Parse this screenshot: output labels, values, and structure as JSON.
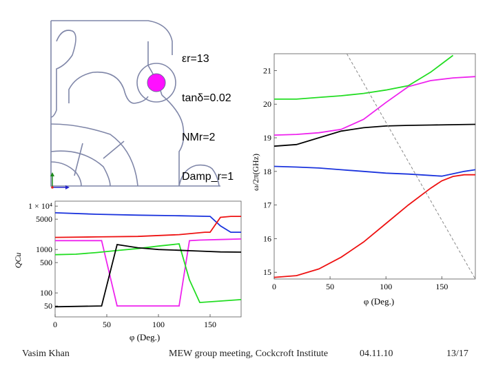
{
  "parameters": [
    "εr=13",
    "tanδ=0.02",
    "NMr=2",
    "Damp_r=1"
  ],
  "footer": {
    "author": "Vasim Khan",
    "event": "MEW group meeting, Cockcroft Institute",
    "date": "04.11.10",
    "page": "13/17"
  },
  "chart_data": [
    {
      "type": "line",
      "name": "frequency-vs-phase",
      "xlabel": "φ (Deg.)",
      "ylabel": "ω/2π(GHz)",
      "xlim": [
        0,
        180
      ],
      "ylim": [
        14.8,
        21.5
      ],
      "xticks": [
        0,
        50,
        100,
        150
      ],
      "yticks": [
        15,
        16,
        17,
        18,
        19,
        20,
        21
      ],
      "series": [
        {
          "name": "green",
          "color": "#22dd22",
          "x": [
            0,
            20,
            40,
            60,
            80,
            100,
            120,
            130,
            140,
            150,
            160
          ],
          "y": [
            20.15,
            20.15,
            20.2,
            20.25,
            20.32,
            20.42,
            20.55,
            20.75,
            20.95,
            21.2,
            21.45
          ]
        },
        {
          "name": "magenta",
          "color": "#ee22ee",
          "x": [
            0,
            20,
            40,
            60,
            80,
            100,
            120,
            140,
            160,
            180
          ],
          "y": [
            19.08,
            19.1,
            19.15,
            19.25,
            19.55,
            20.05,
            20.52,
            20.7,
            20.78,
            20.82
          ]
        },
        {
          "name": "black",
          "color": "#000000",
          "x": [
            0,
            20,
            40,
            60,
            80,
            100,
            120,
            140,
            160,
            180
          ],
          "y": [
            18.75,
            18.8,
            19.0,
            19.2,
            19.3,
            19.35,
            19.37,
            19.38,
            19.39,
            19.4
          ]
        },
        {
          "name": "blue",
          "color": "#1a33dd",
          "x": [
            0,
            20,
            40,
            60,
            80,
            100,
            120,
            140,
            150,
            160,
            170,
            180
          ],
          "y": [
            18.15,
            18.13,
            18.1,
            18.05,
            18.0,
            17.95,
            17.92,
            17.88,
            17.86,
            17.93,
            18.0,
            18.05
          ]
        },
        {
          "name": "red",
          "color": "#ee1111",
          "x": [
            0,
            20,
            40,
            60,
            80,
            100,
            120,
            140,
            150,
            160,
            170,
            180
          ],
          "y": [
            14.85,
            14.9,
            15.1,
            15.45,
            15.9,
            16.45,
            17.0,
            17.5,
            17.72,
            17.85,
            17.9,
            17.9
          ]
        },
        {
          "name": "light-line",
          "color": "#888888",
          "dashed": true,
          "x": [
            65,
            180
          ],
          "y": [
            21.5,
            14.8
          ]
        }
      ]
    },
    {
      "type": "line",
      "name": "quality-factor-vs-phase",
      "xlabel": "φ (Deg.)",
      "ylabel": "QCu",
      "yscale": "log",
      "xlim": [
        0,
        180
      ],
      "ylim": [
        28,
        13000
      ],
      "xticks": [
        0,
        50,
        100,
        150
      ],
      "yticks": [
        50,
        100,
        500,
        1000,
        5000,
        10000
      ],
      "yticklabels": [
        "50",
        "100",
        "500",
        "1000",
        "5000",
        "1 × 10⁴"
      ],
      "series": [
        {
          "name": "blue",
          "color": "#1a33dd",
          "x": [
            0,
            40,
            80,
            120,
            150,
            160,
            170,
            180
          ],
          "y": [
            7000,
            6500,
            6200,
            6000,
            5800,
            3500,
            2500,
            2500
          ]
        },
        {
          "name": "red",
          "color": "#ee1111",
          "x": [
            0,
            40,
            80,
            120,
            145,
            150,
            160,
            170,
            180
          ],
          "y": [
            1900,
            1950,
            2000,
            2200,
            2500,
            2500,
            5500,
            5800,
            5800
          ]
        },
        {
          "name": "magenta",
          "color": "#ee22ee",
          "x": [
            0,
            45,
            60,
            80,
            100,
            120,
            130,
            140,
            160,
            180
          ],
          "y": [
            1600,
            1600,
            50,
            50,
            50,
            50,
            1600,
            1650,
            1700,
            1750
          ]
        },
        {
          "name": "green",
          "color": "#22dd22",
          "x": [
            0,
            20,
            40,
            60,
            80,
            100,
            120,
            130,
            140,
            160,
            180
          ],
          "y": [
            760,
            780,
            850,
            950,
            1050,
            1200,
            1350,
            200,
            60,
            65,
            70
          ]
        },
        {
          "name": "black",
          "color": "#000000",
          "x": [
            0,
            45,
            60,
            80,
            100,
            120,
            140,
            160,
            180
          ],
          "y": [
            48,
            50,
            1300,
            1100,
            1000,
            960,
            920,
            880,
            870
          ]
        }
      ]
    }
  ]
}
